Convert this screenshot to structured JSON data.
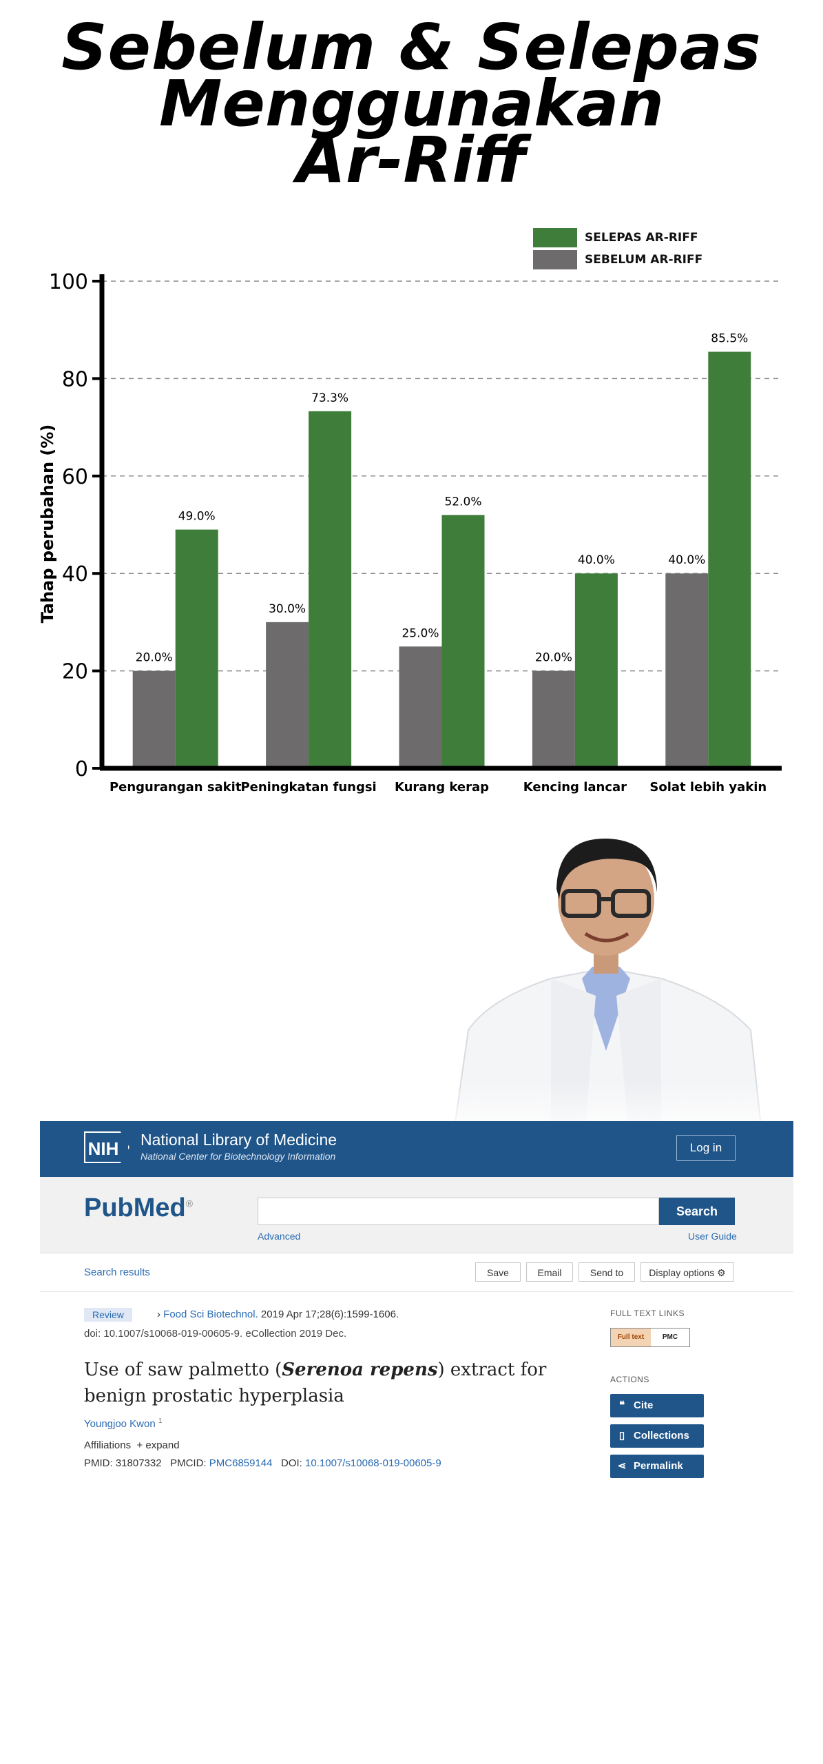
{
  "headline": {
    "line1": "Sebelum & Selepas",
    "line2": "Menggunakan",
    "line3": "Ar-Riff"
  },
  "chart_data": {
    "type": "bar",
    "title": "",
    "xlabel": "",
    "ylabel": "Tahap perubahan (%)",
    "ylim": [
      0,
      100
    ],
    "yticks": [
      0,
      20,
      40,
      60,
      80,
      100
    ],
    "grid": true,
    "legend_position": "top-right",
    "categories": [
      "Pengurangan sakit",
      "Peningkatan fungsi",
      "Kurang kerap",
      "Kencing lancar",
      "Solat lebih yakin"
    ],
    "series": [
      {
        "name": "SEBELUM AR-RIFF",
        "color": "#6d6b6c",
        "values": [
          20.0,
          30.0,
          25.0,
          20.0,
          40.0
        ],
        "labels": [
          "20.0%",
          "30.0%",
          "25.0%",
          "20.0%",
          "40.0%"
        ]
      },
      {
        "name": "SELEPAS AR-RIFF",
        "color": "#3f7d3a",
        "values": [
          49.0,
          73.3,
          52.0,
          40.0,
          85.5
        ],
        "labels": [
          "49.0%",
          "73.3%",
          "52.0%",
          "40.0%",
          "85.5%"
        ]
      }
    ]
  },
  "pubmed": {
    "nih_logo": "NIH",
    "header_title": "National Library of Medicine",
    "header_subtitle": "National Center for Biotechnology Information",
    "login_label": "Log in",
    "logo_text": "PubMed",
    "logo_mark": "®",
    "search_value": "",
    "search_button": "Search",
    "advanced_link": "Advanced",
    "user_guide_link": "User Guide",
    "search_results_link": "Search results",
    "toolbar": {
      "save": "Save",
      "email": "Email",
      "send_to": "Send to",
      "display_options": "Display options"
    },
    "badge": "Review",
    "journal_link": "Food Sci Biotechnol.",
    "journal_rest": " 2019 Apr 17;28(6):1599-1606.",
    "doi_line": "doi: 10.1007/s10068-019-00605-9. eCollection 2019 Dec.",
    "title_part1": "Use of saw palmetto (",
    "title_species": "Serenoa repens",
    "title_part2": ") extract for benign prostatic hyperplasia",
    "author": "Youngjoo Kwon",
    "author_sup": "1",
    "affiliations": "Affiliations",
    "expand": "+ expand",
    "pmid_label": "PMID: 31807332",
    "pmcid_label": "PMCID: ",
    "pmcid_value": "PMC6859144",
    "doi_label": "DOI: ",
    "doi_value": "10.1007/s10068-019-00605-9",
    "full_text_links_heading": "FULL TEXT LINKS",
    "full_text_logo_a": "Full text",
    "full_text_logo_b": "PMC",
    "actions_heading": "ACTIONS",
    "actions": {
      "cite": "Cite",
      "collections": "Collections",
      "permalink": "Permalink"
    }
  }
}
